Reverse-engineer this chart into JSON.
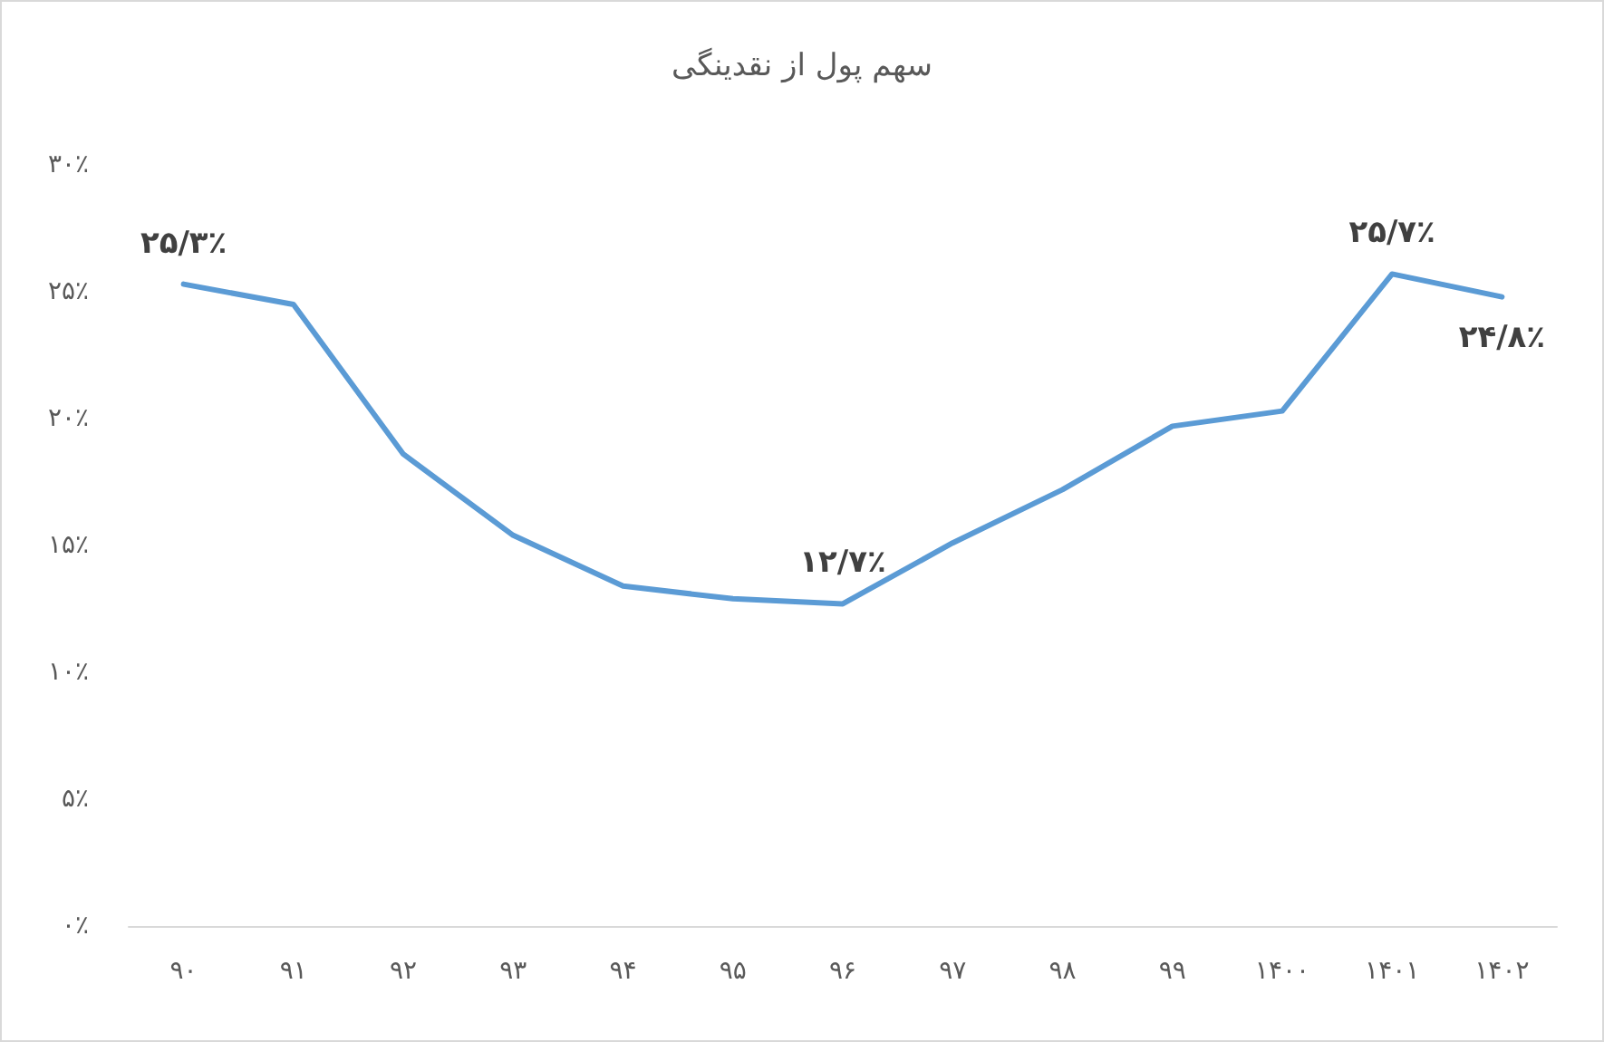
{
  "chart_data": {
    "type": "line",
    "title": "سهم پول از نقدینگی",
    "categories": [
      "۹۰",
      "۹۱",
      "۹۲",
      "۹۳",
      "۹۴",
      "۹۵",
      "۹۶",
      "۹۷",
      "۹۸",
      "۹۹",
      "۱۴۰۰",
      "۱۴۰۱",
      "۱۴۰۲"
    ],
    "series": [
      {
        "color": "#5b9bd5",
        "values": [
          25.3,
          24.5,
          18.6,
          15.4,
          13.4,
          12.9,
          12.7,
          15.1,
          17.2,
          19.7,
          20.3,
          25.7,
          24.8
        ],
        "value_labels": [
          "۲۵/۳٪",
          null,
          null,
          null,
          null,
          null,
          "۱۲/۷٪",
          null,
          null,
          null,
          null,
          "۲۵/۷٪",
          "۲۴/۸٪"
        ]
      }
    ],
    "ylim": [
      0,
      30
    ],
    "yticks": [
      {
        "value": 0,
        "label": "۰٪"
      },
      {
        "value": 5,
        "label": "۵٪"
      },
      {
        "value": 10,
        "label": "۱۰٪"
      },
      {
        "value": 15,
        "label": "۱۵٪"
      },
      {
        "value": 20,
        "label": "۲۰٪"
      },
      {
        "value": 25,
        "label": "۲۵٪"
      },
      {
        "value": 30,
        "label": "۳۰٪"
      }
    ],
    "grid": false,
    "legend": false,
    "marker": "none",
    "line_style": "solid"
  }
}
